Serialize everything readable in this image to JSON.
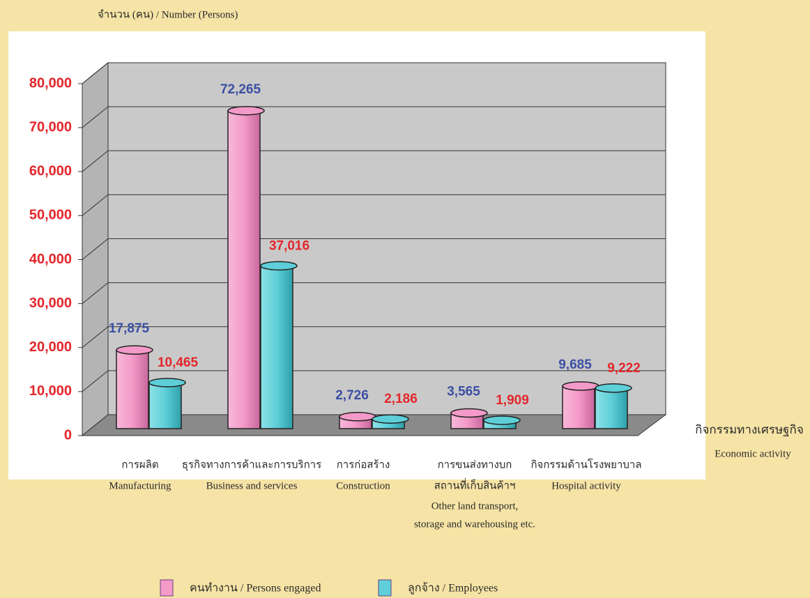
{
  "chart_data": {
    "type": "bar3d",
    "y_label": "จำนวน (คน) / Number (Persons)",
    "x_label": [
      "กิจกรรมทางเศรษฐกิจ",
      "Economic activity"
    ],
    "categories": [
      [
        "การผลิต",
        "Manufacturing"
      ],
      [
        "ธุรกิจทางการค้าและการบริการ",
        "Business and services"
      ],
      [
        "การก่อสร้าง",
        "Construction"
      ],
      [
        "การขนส่งทางบก",
        "สถานที่เก็บสินค้าฯ",
        "Other land transport,",
        "storage and warehousing etc."
      ],
      [
        "กิจกรรมด้านโรงพยาบาล",
        "Hospital activity"
      ]
    ],
    "series": [
      {
        "name": "คนทำงาน / Persons engaged",
        "color": "#f39ac8",
        "label_color": "#3c4fa3",
        "values": [
          17875,
          72265,
          2726,
          3565,
          9685
        ],
        "value_labels": [
          "17,875",
          "72,265",
          "2,726",
          "3,565",
          "9,685"
        ]
      },
      {
        "name": "ลูกจ้าง /  Employees",
        "color": "#5ecfd8",
        "label_color": "#e3262b",
        "values": [
          10465,
          37016,
          2186,
          1909,
          9222
        ],
        "value_labels": [
          "10,465",
          "37,016",
          "2,186",
          "1,909",
          "9,222"
        ]
      }
    ],
    "ylim": [
      0,
      80000
    ],
    "yticks": [
      0,
      {
        "value": 10000,
        "label": "10,000"
      },
      {
        "value": 20000,
        "label": "20,000"
      },
      {
        "value": 30000,
        "label": "30,000"
      },
      {
        "value": 40000,
        "label": "40,000"
      },
      {
        "value": 50000,
        "label": "50,000"
      },
      {
        "value": 60000,
        "label": "60,000"
      },
      {
        "value": 70000,
        "label": "70,000"
      },
      {
        "value": 80000,
        "label": "80,000"
      }
    ],
    "grid": true,
    "legend": "bottom"
  }
}
